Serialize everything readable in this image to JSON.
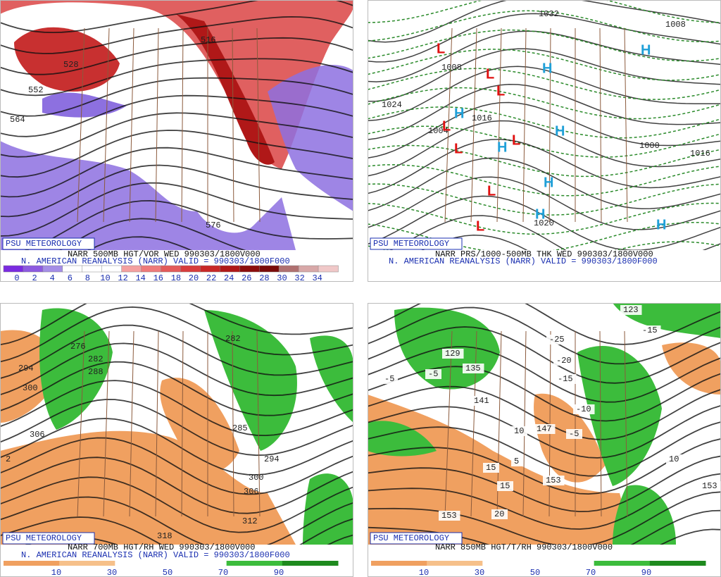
{
  "panels": [
    {
      "badge": "PSU METEOROLOGY",
      "title": "NARR 500MB HGT/VOR WED 990303/1800V000",
      "subtitle": "N. AMERICAN REANALYSIS (NARR) VALID = 990303/1800F000",
      "labels": [
        "516",
        "528",
        "552",
        "564",
        "576"
      ],
      "colorbar": {
        "ticks": [
          0,
          2,
          4,
          6,
          8,
          10,
          12,
          14,
          16,
          18,
          20,
          22,
          24,
          26,
          28,
          30,
          32,
          34
        ],
        "colors": [
          "#7a2be0",
          "#8d5ae0",
          "#a58ee6",
          "#ffffff",
          "#ffffff",
          "#ffffff",
          "#f4a0a0",
          "#ee7a7a",
          "#e35a5a",
          "#d83c3c",
          "#c82828",
          "#b01818",
          "#8c0c0c",
          "#7a0a0a",
          "#b07070",
          "#d8a8a8",
          "#f0c8c8"
        ]
      }
    },
    {
      "badge": "PSU METEOROLOGY",
      "title": "NARR PRS/1000-500MB THK WED 990303/1800V000",
      "subtitle": "N. AMERICAN REANALYSIS (NARR) VALID = 990303/1800F000",
      "labels": [
        "1032",
        "1008",
        "1024",
        "1016",
        "1000",
        "1004",
        "1020",
        "1016",
        "1008"
      ],
      "markers": [
        "H",
        "H",
        "H",
        "H",
        "H",
        "H",
        "H",
        "H",
        "L",
        "L",
        "L",
        "L",
        "L",
        "L",
        "L",
        "L"
      ]
    },
    {
      "badge": "PSU METEOROLOGY",
      "title": "NARR 700MB HGT/RH WED 990303/1800V000",
      "subtitle": "N. AMERICAN REANALYSIS (NARR) VALID = 990303/1800F000",
      "labels": [
        "294",
        "300",
        "306",
        "276",
        "282",
        "288",
        "282",
        "285",
        "294",
        "300",
        "306",
        "312",
        "318",
        "2"
      ],
      "colorbar": {
        "ticks": [
          10,
          30,
          50,
          70,
          90
        ],
        "colors": [
          "#f0a060",
          "#f6c08a",
          "#ffffff",
          "#ffffff",
          "#3cbc3c",
          "#1e8a1e"
        ]
      }
    },
    {
      "badge": "PSU METEOROLOGY",
      "title": "NARR 850MB HGT/T/RH 990303/1800V000",
      "labels": [
        "123",
        "129",
        "135",
        "141",
        "147",
        "153",
        "153",
        "153",
        "-5",
        "-5",
        "-25",
        "-20",
        "-15",
        "-10",
        "-15",
        "-5",
        "10",
        "10",
        "15",
        "15",
        "5",
        "20"
      ],
      "colorbar": {
        "ticks": [
          10,
          30,
          50,
          70,
          90
        ],
        "colors": [
          "#f0a060",
          "#f6c08a",
          "#ffffff",
          "#ffffff",
          "#3cbc3c",
          "#1e8a1e"
        ]
      }
    }
  ]
}
